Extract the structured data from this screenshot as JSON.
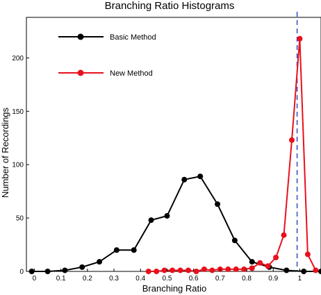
{
  "chart_data": {
    "type": "line",
    "title": "Branching Ratio Histograms",
    "xlabel": "Branching Ratio",
    "ylabel": "Number of Recordings",
    "xlim": [
      -0.03,
      1.08
    ],
    "ylim": [
      0,
      238
    ],
    "xticks": [
      0,
      0.1,
      0.2,
      0.3,
      0.4,
      0.5,
      0.6,
      0.7,
      0.8,
      0.9,
      1
    ],
    "xtick_labels": [
      "0",
      "0.1",
      "0.2",
      "0.3",
      "0.4",
      "0.5",
      "0.6",
      "0.7",
      "0.8",
      "0.9",
      "1"
    ],
    "yticks": [
      0,
      50,
      100,
      150,
      200
    ],
    "ytick_labels": [
      "0",
      "50",
      "100",
      "150",
      "200"
    ],
    "grid": false,
    "legend_position": "top-left",
    "reference_line": {
      "x": 0.99,
      "style": "dashed",
      "color": "#3a55c4"
    },
    "series": [
      {
        "name": "Basic Method",
        "color": "#000000",
        "x": [
          -0.01,
          0.05,
          0.115,
          0.18,
          0.245,
          0.31,
          0.375,
          0.44,
          0.5,
          0.565,
          0.625,
          0.69,
          0.755,
          0.82,
          0.885,
          0.95,
          1.015,
          1.08
        ],
        "y": [
          0,
          0,
          1,
          4,
          9,
          20,
          20,
          48,
          52,
          86,
          89,
          63,
          29,
          9,
          4,
          1,
          0,
          0
        ]
      },
      {
        "name": "New Method",
        "color": "#e8101c",
        "x": [
          0.43,
          0.46,
          0.49,
          0.52,
          0.55,
          0.58,
          0.61,
          0.64,
          0.67,
          0.7,
          0.73,
          0.76,
          0.79,
          0.82,
          0.85,
          0.88,
          0.91,
          0.94,
          0.97,
          1.0,
          1.03,
          1.06
        ],
        "y": [
          0,
          0,
          1,
          1,
          1,
          1,
          0,
          2,
          1,
          2,
          2,
          2,
          2,
          3,
          8,
          5,
          13,
          34,
          123,
          218,
          16,
          1
        ]
      }
    ]
  }
}
